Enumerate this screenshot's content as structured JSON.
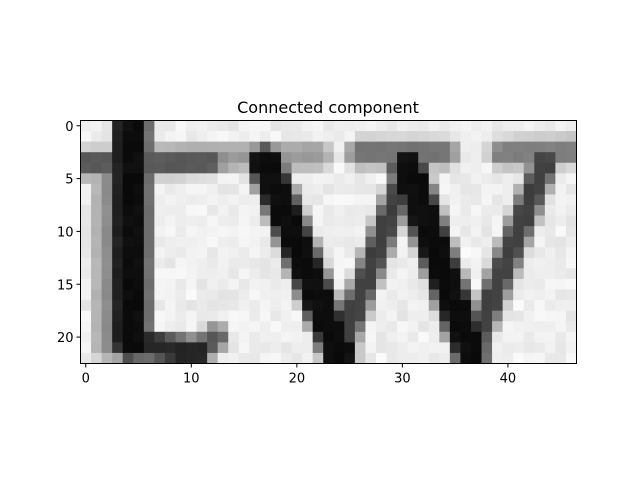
{
  "chart_data": {
    "type": "heatmap",
    "title": "Connected component",
    "colormap": "gray",
    "rows": 23,
    "cols": 47,
    "xlim": [
      -0.5,
      46.5
    ],
    "ylim": [
      22.5,
      -0.5
    ],
    "xticks": [
      0,
      10,
      20,
      30,
      40
    ],
    "yticks": [
      0,
      5,
      10,
      15,
      20
    ],
    "xtick_labels": [
      "0",
      "10",
      "20",
      "30",
      "40"
    ],
    "ytick_labels": [
      "0",
      "5",
      "10",
      "15",
      "20"
    ],
    "grid": false,
    "glyph_strokes": [
      {
        "x0": 4.3,
        "y0": 0.0,
        "x1": 4.3,
        "y1": 20.5,
        "w": 2.4,
        "v": 0.05
      },
      {
        "x0": 4.3,
        "y0": 20.5,
        "x1": 10.5,
        "y1": 21.5,
        "w": 1.6,
        "v": 0.15
      },
      {
        "x0": 10.5,
        "y0": 21.5,
        "x1": 12.3,
        "y1": 20.0,
        "w": 1.2,
        "v": 0.35
      },
      {
        "x0": 0.0,
        "y0": 3.6,
        "x1": 12.0,
        "y1": 3.3,
        "w": 1.3,
        "v": 0.35
      },
      {
        "x0": 12.0,
        "y0": 3.0,
        "x1": 22.0,
        "y1": 2.8,
        "w": 1.2,
        "v": 0.6
      },
      {
        "x0": 17.0,
        "y0": 3.5,
        "x1": 24.0,
        "y1": 21.5,
        "w": 2.2,
        "v": 0.05
      },
      {
        "x0": 24.0,
        "y0": 21.5,
        "x1": 30.5,
        "y1": 4.0,
        "w": 1.3,
        "v": 0.25
      },
      {
        "x0": 30.5,
        "y0": 4.0,
        "x1": 36.5,
        "y1": 21.5,
        "w": 2.2,
        "v": 0.05
      },
      {
        "x0": 36.5,
        "y0": 21.5,
        "x1": 43.5,
        "y1": 3.5,
        "w": 1.3,
        "v": 0.25
      },
      {
        "x0": 26.0,
        "y0": 2.6,
        "x1": 34.0,
        "y1": 2.6,
        "w": 1.3,
        "v": 0.45
      },
      {
        "x0": 39.5,
        "y0": 2.6,
        "x1": 46.5,
        "y1": 2.4,
        "w": 1.3,
        "v": 0.5
      },
      {
        "x0": 2.0,
        "y0": 4.0,
        "x1": 2.0,
        "y1": 21.0,
        "w": 1.0,
        "v": 0.55
      }
    ]
  }
}
